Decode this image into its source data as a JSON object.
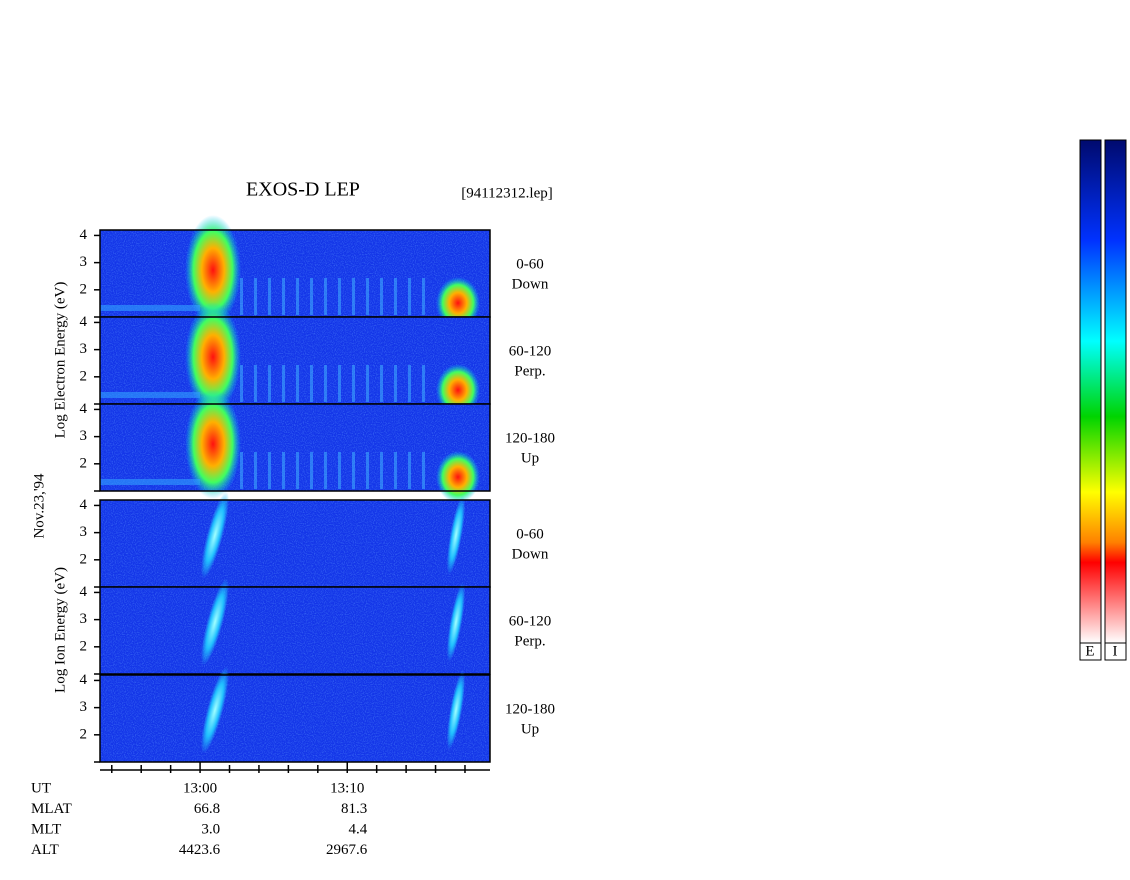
{
  "chart_data": {
    "type": "spectrogram",
    "title": "EXOS-D LEP",
    "file_label": "[94112312.lep]",
    "date_label": "Nov.23,'94",
    "group_labels": [
      "Log  Electron  Energy (eV)",
      "Log  Ion  Energy (eV)"
    ],
    "panels": [
      {
        "species": "electron",
        "label": [
          "0-60",
          "Down"
        ],
        "ylim": [
          1,
          4.2
        ],
        "yticks": [
          2,
          3,
          4
        ]
      },
      {
        "species": "electron",
        "label": [
          "60-120",
          "Perp."
        ],
        "ylim": [
          1,
          4.2
        ],
        "yticks": [
          2,
          3,
          4
        ]
      },
      {
        "species": "electron",
        "label": [
          "120-180",
          "Up"
        ],
        "ylim": [
          1,
          4.2
        ],
        "yticks": [
          2,
          3,
          4
        ]
      },
      {
        "species": "ion",
        "label": [
          "0-60",
          "Down"
        ],
        "ylim": [
          1,
          4.2
        ],
        "yticks": [
          2,
          3,
          4
        ]
      },
      {
        "species": "ion",
        "label": [
          "60-120",
          "Perp."
        ],
        "ylim": [
          1,
          4.2
        ],
        "yticks": [
          2,
          3,
          4
        ]
      },
      {
        "species": "ion",
        "label": [
          "120-180",
          "Up"
        ],
        "ylim": [
          1,
          4.2
        ],
        "yticks": [
          2,
          3,
          4
        ]
      }
    ],
    "xlim": [
      773.2,
      799.7
    ],
    "xticks": [
      {
        "value": 780,
        "label": "13:00"
      },
      {
        "value": 790,
        "label": "13:10"
      }
    ],
    "xminorticks": [
      774,
      776,
      778,
      782,
      784,
      786,
      788,
      792,
      794,
      796,
      798
    ],
    "orbit_rows": [
      {
        "label": "UT"
      },
      {
        "label": "MLAT",
        "values": [
          "66.8",
          "81.3"
        ]
      },
      {
        "label": "MLT",
        "values": [
          "3.0",
          "4.4"
        ]
      },
      {
        "label": "ALT",
        "values": [
          "4423.6",
          "2967.6"
        ]
      }
    ],
    "colorbar_labels": [
      "E",
      "I"
    ]
  }
}
